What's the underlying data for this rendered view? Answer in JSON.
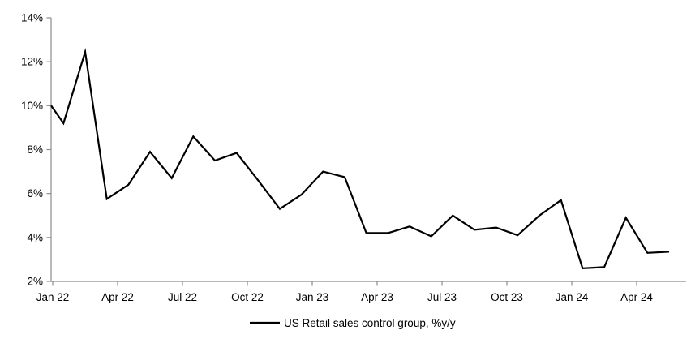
{
  "chart_data": {
    "type": "line",
    "title": "",
    "legend_label": "US Retail sales control group, %y/y",
    "legend_position": "bottom-center",
    "grid": false,
    "axis_color": "#8C8C8C",
    "text_color": "#000000",
    "line_color": "#000000",
    "y_axis": {
      "min": 2,
      "max": 14,
      "step": 2,
      "tick_labels": [
        "2%",
        "4%",
        "6%",
        "8%",
        "10%",
        "12%",
        "14%"
      ]
    },
    "x_axis": {
      "tick_labels": [
        "Jan 22",
        "Apr 22",
        "Jul 22",
        "Oct 22",
        "Jan 23",
        "Apr 23",
        "Jul 23",
        "Oct 23",
        "Jan 24",
        "Apr 24"
      ],
      "months_per_tick": 3
    },
    "edge_start_value": 10.0,
    "series": [
      {
        "name": "US Retail sales control group, %y/y",
        "color": "#000000",
        "months": [
          "Jan 22",
          "Feb 22",
          "Mar 22",
          "Apr 22",
          "May 22",
          "Jun 22",
          "Jul 22",
          "Aug 22",
          "Sep 22",
          "Oct 22",
          "Nov 22",
          "Dec 22",
          "Jan 23",
          "Feb 23",
          "Mar 23",
          "Apr 23",
          "May 23",
          "Jun 23",
          "Jul 23",
          "Aug 23",
          "Sep 23",
          "Oct 23",
          "Nov 23",
          "Dec 23",
          "Jan 24",
          "Feb 24",
          "Mar 24",
          "Apr 24",
          "May 24"
        ],
        "values": [
          9.2,
          12.45,
          5.75,
          6.4,
          7.9,
          6.7,
          8.6,
          7.5,
          7.85,
          6.6,
          5.3,
          5.95,
          7.0,
          6.75,
          4.2,
          4.2,
          4.5,
          4.05,
          5.0,
          4.35,
          4.45,
          4.1,
          5.0,
          5.7,
          2.6,
          2.65,
          4.9,
          3.3,
          3.35
        ]
      }
    ]
  }
}
